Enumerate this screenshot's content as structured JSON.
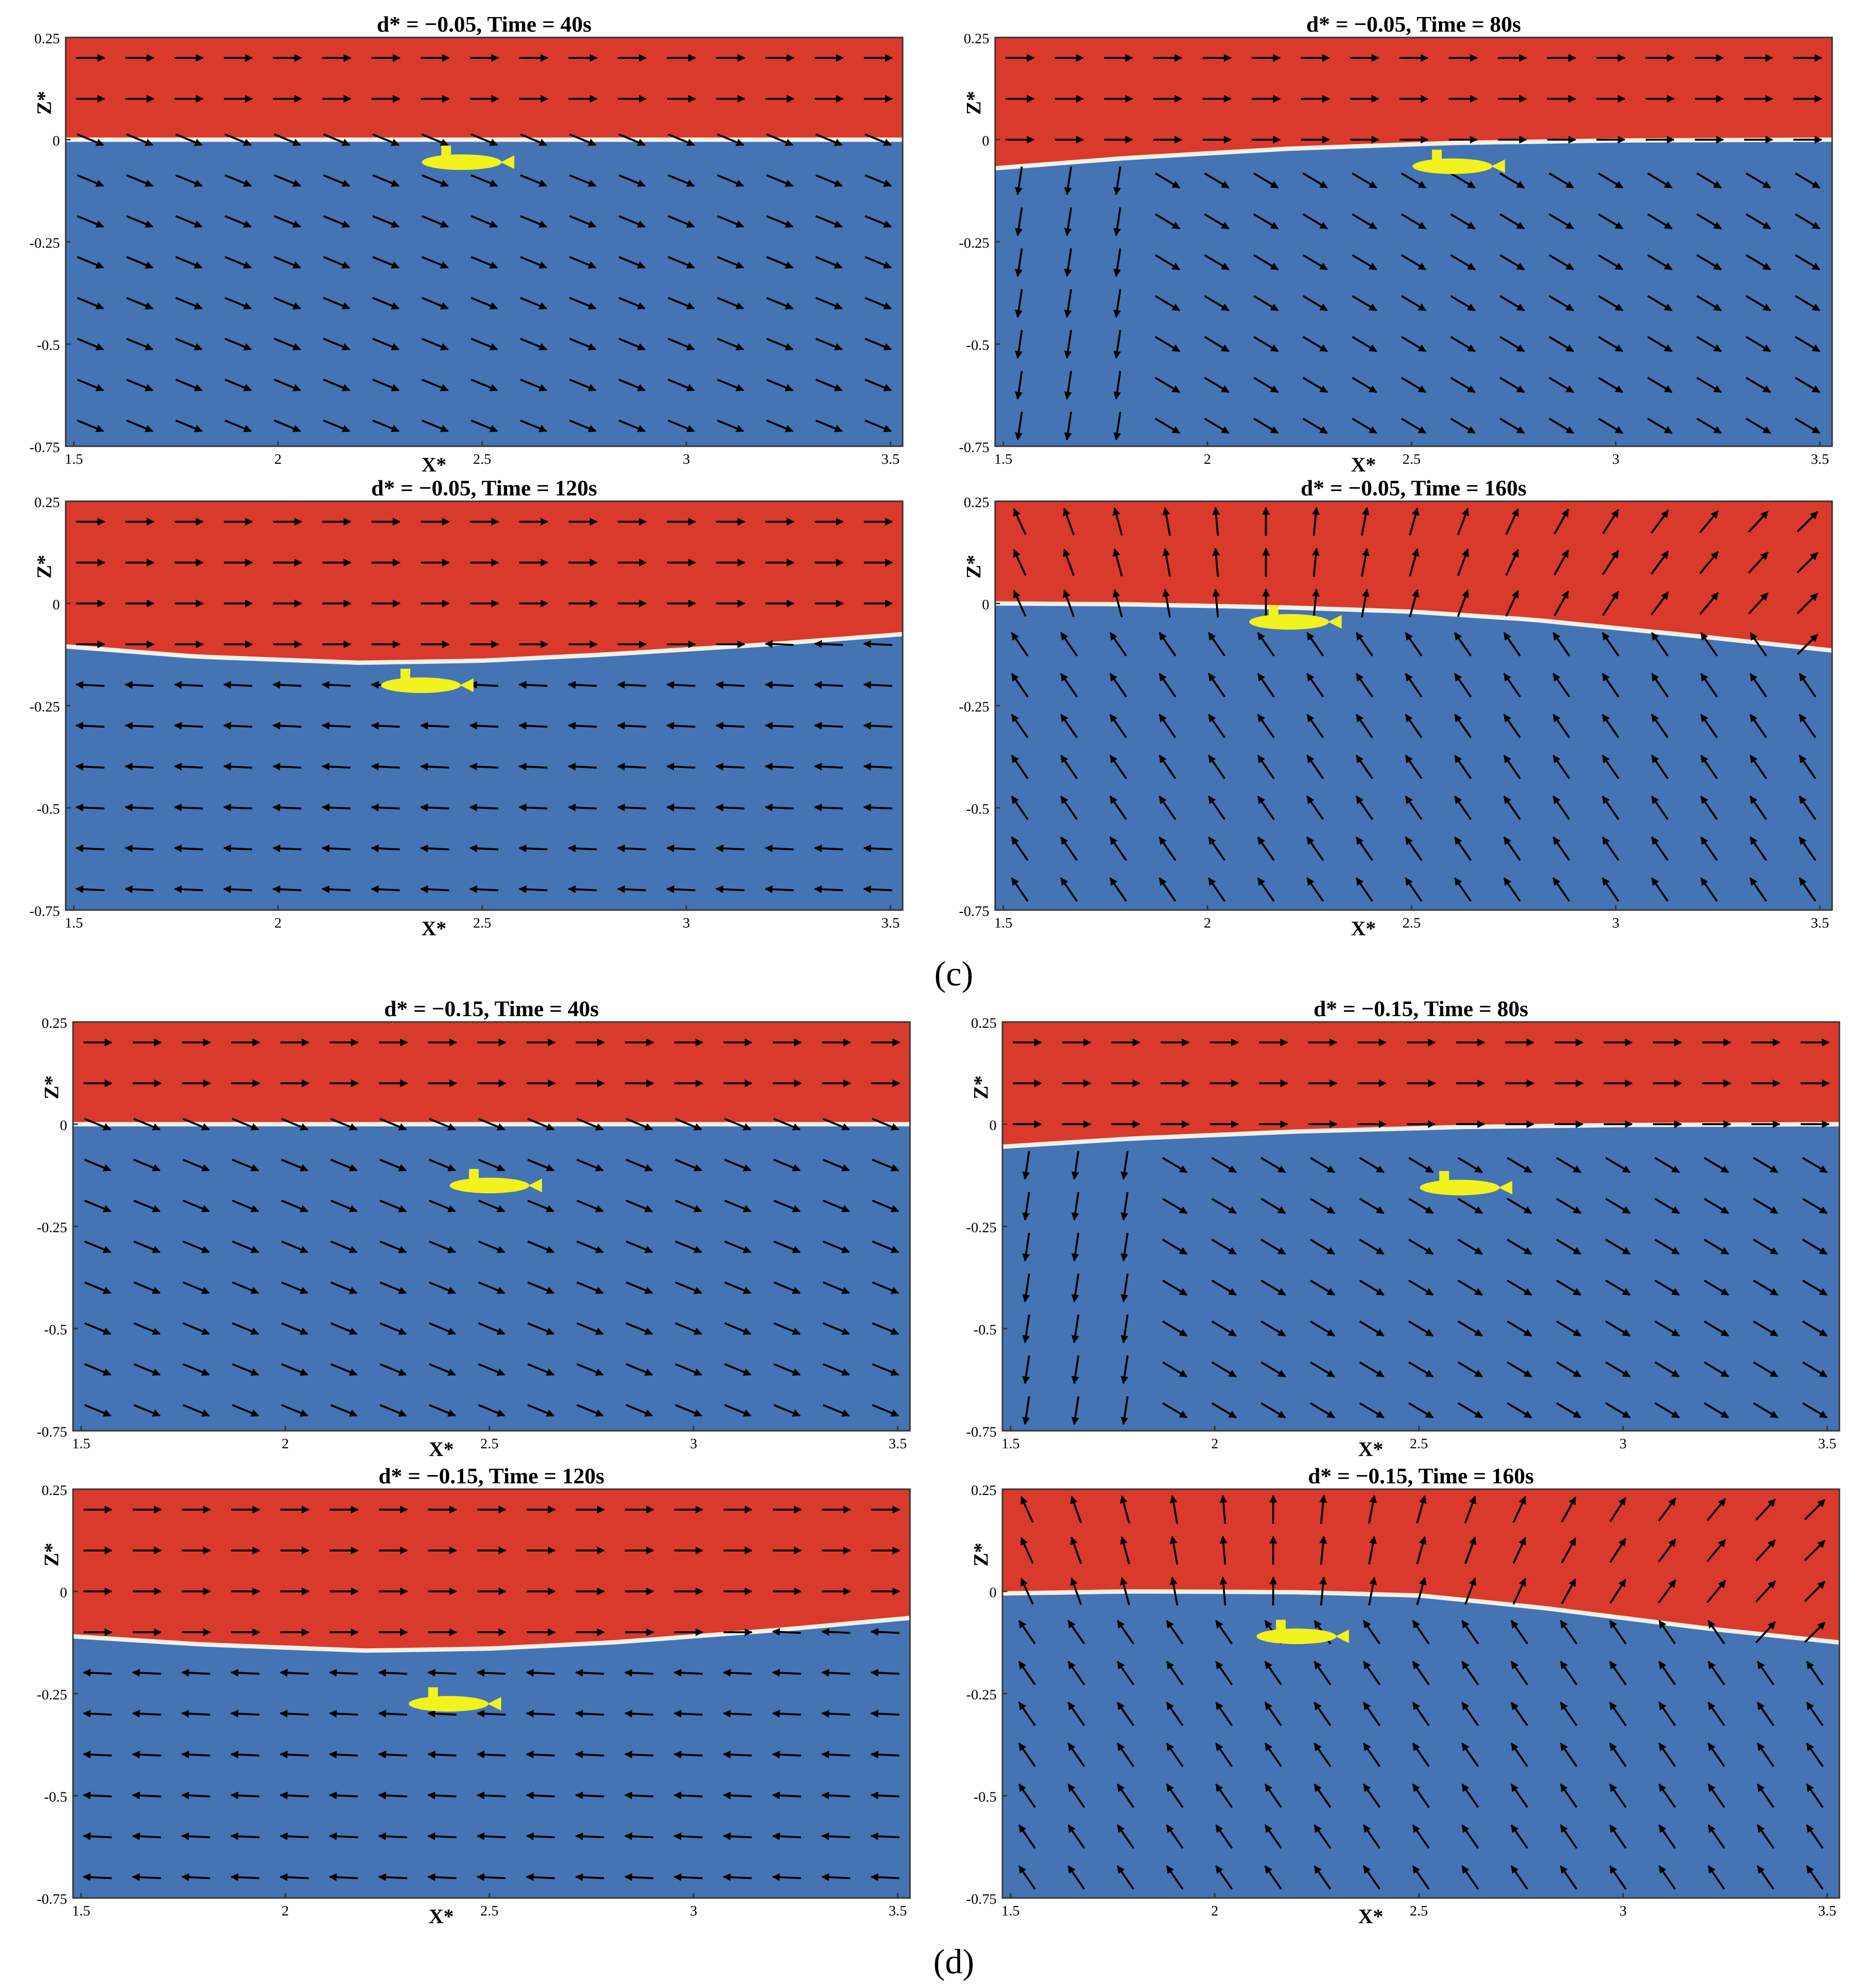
{
  "figure": {
    "group_labels": [
      "(c)",
      "(d)"
    ]
  },
  "chart_data": [
    {
      "type": "contour",
      "group": "(c)",
      "title": "d* = −0.05, Time = 40s",
      "xlabel": "X*",
      "ylabel": "Z*",
      "xlim": [
        1.48,
        3.53
      ],
      "ylim": [
        -0.75,
        0.25
      ],
      "x_ticks": [
        "1.5",
        "2",
        "2.5",
        "3",
        "3.5"
      ],
      "y_ticks": [
        "0.25",
        "0",
        "-0.25",
        "-0.5",
        "-0.75"
      ],
      "air_color": "#d93a2b",
      "water_color": "#4474b4",
      "submarine_color": "#f2f21e",
      "free_surface": {
        "x": [
          1.48,
          2.0,
          2.5,
          3.0,
          3.53
        ],
        "z": [
          0.0,
          0.0,
          0.0,
          0.0,
          0.0
        ]
      },
      "submarine": {
        "x": 2.45,
        "z": -0.055
      },
      "velocity_field": {
        "air": "rightward",
        "water": "down-right"
      }
    },
    {
      "type": "contour",
      "group": "(c)",
      "title": "d* = −0.05, Time = 80s",
      "xlabel": "X*",
      "ylabel": "Z*",
      "xlim": [
        1.48,
        3.53
      ],
      "ylim": [
        -0.75,
        0.25
      ],
      "x_ticks": [
        "1.5",
        "2",
        "2.5",
        "3",
        "3.5"
      ],
      "y_ticks": [
        "0.25",
        "0",
        "-0.25",
        "-0.5",
        "-0.75"
      ],
      "air_color": "#d93a2b",
      "water_color": "#4474b4",
      "submarine_color": "#f2f21e",
      "free_surface": {
        "x": [
          1.48,
          1.8,
          2.2,
          2.6,
          3.0,
          3.53
        ],
        "z": [
          -0.07,
          -0.045,
          -0.022,
          -0.008,
          -0.002,
          0.0
        ]
      },
      "submarine": {
        "x": 2.6,
        "z": -0.065
      },
      "velocity_field": {
        "air": "rightward",
        "water": "downward-left near inlet, down-right elsewhere"
      }
    },
    {
      "type": "contour",
      "group": "(c)",
      "title": "d* = −0.05, Time = 120s",
      "xlabel": "X*",
      "ylabel": "Z*",
      "xlim": [
        1.48,
        3.53
      ],
      "ylim": [
        -0.75,
        0.25
      ],
      "x_ticks": [
        "1.5",
        "2",
        "2.5",
        "3",
        "3.5"
      ],
      "y_ticks": [
        "0.25",
        "0",
        "-0.25",
        "-0.5",
        "-0.75"
      ],
      "air_color": "#d93a2b",
      "water_color": "#4474b4",
      "submarine_color": "#f2f21e",
      "free_surface": {
        "x": [
          1.48,
          1.8,
          2.2,
          2.5,
          2.8,
          3.2,
          3.53
        ],
        "z": [
          -0.105,
          -0.13,
          -0.145,
          -0.14,
          -0.125,
          -0.1,
          -0.075
        ]
      },
      "submarine": {
        "x": 2.35,
        "z": -0.2
      },
      "velocity_field": {
        "air": "rightward",
        "water": "leftward"
      }
    },
    {
      "type": "contour",
      "group": "(c)",
      "title": "d* = −0.05, Time = 160s",
      "xlabel": "X*",
      "ylabel": "Z*",
      "xlim": [
        1.48,
        3.53
      ],
      "ylim": [
        -0.75,
        0.25
      ],
      "x_ticks": [
        "1.5",
        "2",
        "2.5",
        "3",
        "3.5"
      ],
      "y_ticks": [
        "0.25",
        "0",
        "-0.25",
        "-0.5",
        "-0.75"
      ],
      "air_color": "#d93a2b",
      "water_color": "#4474b4",
      "submarine_color": "#f2f21e",
      "free_surface": {
        "x": [
          1.48,
          1.8,
          2.2,
          2.5,
          2.8,
          3.2,
          3.53
        ],
        "z": [
          0.0,
          -0.002,
          -0.01,
          -0.02,
          -0.04,
          -0.08,
          -0.115
        ]
      },
      "submarine": {
        "x": 2.2,
        "z": -0.045
      },
      "velocity_field": {
        "air": "radiating upward from crest",
        "water": "up-left"
      }
    },
    {
      "type": "contour",
      "group": "(d)",
      "title": "d* = −0.15, Time = 40s",
      "xlabel": "X*",
      "ylabel": "Z*",
      "xlim": [
        1.48,
        3.53
      ],
      "ylim": [
        -0.75,
        0.25
      ],
      "x_ticks": [
        "1.5",
        "2",
        "2.5",
        "3",
        "3.5"
      ],
      "y_ticks": [
        "0.25",
        "0",
        "-0.25",
        "-0.5",
        "-0.75"
      ],
      "air_color": "#d93a2b",
      "water_color": "#4474b4",
      "submarine_color": "#f2f21e",
      "free_surface": {
        "x": [
          1.48,
          2.0,
          2.5,
          3.0,
          3.53
        ],
        "z": [
          0.0,
          0.0,
          0.0,
          0.0,
          0.0
        ]
      },
      "submarine": {
        "x": 2.5,
        "z": -0.15
      },
      "velocity_field": {
        "air": "rightward",
        "water": "down-right"
      }
    },
    {
      "type": "contour",
      "group": "(d)",
      "title": "d* = −0.15, Time = 80s",
      "xlabel": "X*",
      "ylabel": "Z*",
      "xlim": [
        1.48,
        3.53
      ],
      "ylim": [
        -0.75,
        0.25
      ],
      "x_ticks": [
        "1.5",
        "2",
        "2.5",
        "3",
        "3.5"
      ],
      "y_ticks": [
        "0.25",
        "0",
        "-0.25",
        "-0.5",
        "-0.75"
      ],
      "air_color": "#d93a2b",
      "water_color": "#4474b4",
      "submarine_color": "#f2f21e",
      "free_surface": {
        "x": [
          1.48,
          1.8,
          2.2,
          2.6,
          3.0,
          3.53
        ],
        "z": [
          -0.055,
          -0.035,
          -0.018,
          -0.007,
          -0.002,
          0.0
        ]
      },
      "submarine": {
        "x": 2.6,
        "z": -0.155
      },
      "velocity_field": {
        "air": "rightward",
        "water": "downward near inlet, down-right elsewhere"
      }
    },
    {
      "type": "contour",
      "group": "(d)",
      "title": "d* = −0.15, Time = 120s",
      "xlabel": "X*",
      "ylabel": "Z*",
      "xlim": [
        1.48,
        3.53
      ],
      "ylim": [
        -0.75,
        0.25
      ],
      "x_ticks": [
        "1.5",
        "2",
        "2.5",
        "3",
        "3.5"
      ],
      "y_ticks": [
        "0.25",
        "0",
        "-0.25",
        "-0.5",
        "-0.75"
      ],
      "air_color": "#d93a2b",
      "water_color": "#4474b4",
      "submarine_color": "#f2f21e",
      "free_surface": {
        "x": [
          1.48,
          1.8,
          2.2,
          2.5,
          2.8,
          3.2,
          3.53
        ],
        "z": [
          -0.11,
          -0.13,
          -0.145,
          -0.14,
          -0.125,
          -0.095,
          -0.065
        ]
      },
      "submarine": {
        "x": 2.4,
        "z": -0.275
      },
      "velocity_field": {
        "air": "rightward",
        "water": "leftward"
      }
    },
    {
      "type": "contour",
      "group": "(d)",
      "title": "d* = −0.15, Time = 160s",
      "xlabel": "X*",
      "ylabel": "Z*",
      "xlim": [
        1.48,
        3.53
      ],
      "ylim": [
        -0.75,
        0.25
      ],
      "x_ticks": [
        "1.5",
        "2",
        "2.5",
        "3",
        "3.5"
      ],
      "y_ticks": [
        "0.25",
        "0",
        "-0.25",
        "-0.5",
        "-0.75"
      ],
      "air_color": "#d93a2b",
      "water_color": "#4474b4",
      "submarine_color": "#f2f21e",
      "free_surface": {
        "x": [
          1.48,
          1.8,
          2.2,
          2.5,
          2.8,
          3.2,
          3.53
        ],
        "z": [
          -0.005,
          0.0,
          -0.002,
          -0.01,
          -0.04,
          -0.09,
          -0.125
        ]
      },
      "submarine": {
        "x": 2.2,
        "z": -0.11
      },
      "velocity_field": {
        "air": "radiating upward from crest",
        "water": "up-left"
      }
    }
  ]
}
